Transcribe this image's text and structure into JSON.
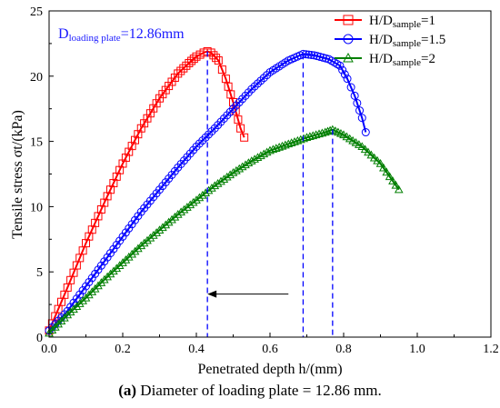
{
  "chart_data": {
    "type": "scatter",
    "xlabel": "Penetrated depth h/(mm)",
    "ylabel": "Tensile stress σt/(kPa)",
    "xlim": [
      0,
      1.2
    ],
    "ylim": [
      0,
      25
    ],
    "xticks": [
      "0.0",
      "0.2",
      "0.4",
      "0.6",
      "0.8",
      "1.0",
      "1.2"
    ],
    "yticks": [
      "0",
      "5",
      "10",
      "15",
      "20",
      "25"
    ],
    "annotation": {
      "main": "D",
      "sub": "loading plate",
      "rest": "=12.86mm",
      "color": "#1a1aff"
    },
    "arrow": {
      "x_from": 0.65,
      "x_to": 0.43,
      "y": 3.3,
      "direction": "left"
    },
    "vlines": [
      0.43,
      0.69,
      0.77
    ],
    "legend_position": "top-right",
    "series": [
      {
        "name_main": "H/D",
        "name_sub": "sample",
        "name_rest": "=1",
        "color": "#ff0000",
        "marker": "square",
        "x": [
          0.0,
          0.05,
          0.1,
          0.15,
          0.2,
          0.25,
          0.3,
          0.35,
          0.38,
          0.4,
          0.42,
          0.43,
          0.44,
          0.46,
          0.48,
          0.5,
          0.52,
          0.53
        ],
        "y": [
          0.5,
          3.8,
          7.2,
          10.3,
          13.3,
          16.0,
          18.3,
          20.2,
          21.0,
          21.5,
          21.8,
          21.9,
          21.8,
          21.2,
          19.8,
          18.0,
          16.0,
          15.3
        ]
      },
      {
        "name_main": "H/D",
        "name_sub": "sample",
        "name_rest": "=1.5",
        "color": "#0000ff",
        "marker": "circle",
        "x": [
          0.0,
          0.05,
          0.1,
          0.15,
          0.2,
          0.25,
          0.3,
          0.35,
          0.4,
          0.45,
          0.5,
          0.55,
          0.6,
          0.65,
          0.69,
          0.72,
          0.76,
          0.79,
          0.81,
          0.83,
          0.85,
          0.86
        ],
        "y": [
          0.5,
          2.0,
          3.9,
          5.8,
          7.7,
          9.6,
          11.3,
          13.0,
          14.6,
          16.0,
          17.5,
          19.0,
          20.3,
          21.2,
          21.7,
          21.6,
          21.3,
          20.8,
          19.8,
          18.5,
          16.8,
          15.7
        ]
      },
      {
        "name_main": "H/D",
        "name_sub": "sample",
        "name_rest": "=2",
        "color": "#007f00",
        "marker": "triangle",
        "x": [
          0.0,
          0.05,
          0.1,
          0.15,
          0.2,
          0.25,
          0.3,
          0.35,
          0.4,
          0.45,
          0.5,
          0.55,
          0.6,
          0.65,
          0.7,
          0.75,
          0.77,
          0.8,
          0.85,
          0.9,
          0.95
        ],
        "y": [
          0.3,
          1.7,
          3.0,
          4.4,
          5.7,
          7.0,
          8.2,
          9.4,
          10.5,
          11.6,
          12.6,
          13.5,
          14.3,
          14.8,
          15.3,
          15.7,
          15.9,
          15.5,
          14.6,
          13.3,
          11.3
        ]
      }
    ]
  },
  "caption": {
    "label": "(a)",
    "text": " Diameter of loading plate = 12.86 mm."
  }
}
